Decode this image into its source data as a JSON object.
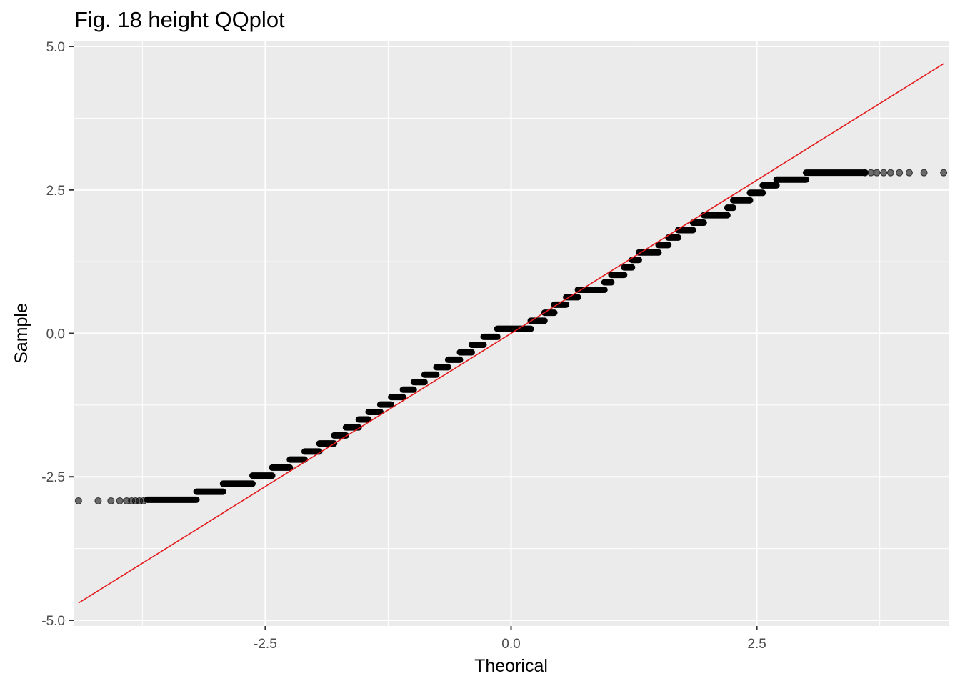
{
  "chart_data": {
    "type": "scatter",
    "title": "Fig. 18 height QQplot",
    "xlabel": "Theorical",
    "ylabel": "Sample",
    "xlim": [
      -4.45,
      4.45
    ],
    "ylim": [
      -5.1,
      5.1
    ],
    "x_ticks": [
      -2.5,
      0.0,
      2.5
    ],
    "x_tick_labels": [
      "-2.5",
      "0.0",
      "2.5"
    ],
    "y_ticks": [
      -5.0,
      -2.5,
      0.0,
      2.5,
      5.0
    ],
    "y_tick_labels": [
      "-5.0",
      "-2.5",
      "0.0",
      "2.5",
      "5.0"
    ],
    "grid": true,
    "background": "#ebebeb",
    "grid_color": "#ffffff",
    "point_color": "#000000",
    "line_color": "#e31a1c",
    "reference_line": {
      "x": [
        -4.4,
        4.4
      ],
      "y": [
        -4.7,
        4.7
      ]
    },
    "steps": [
      {
        "y": -2.9,
        "x0": -3.7,
        "x1": -3.2
      },
      {
        "y": -2.76,
        "x0": -3.2,
        "x1": -2.93
      },
      {
        "y": -2.62,
        "x0": -2.93,
        "x1": -2.63
      },
      {
        "y": -2.48,
        "x0": -2.63,
        "x1": -2.43
      },
      {
        "y": -2.34,
        "x0": -2.43,
        "x1": -2.25
      },
      {
        "y": -2.2,
        "x0": -2.25,
        "x1": -2.1
      },
      {
        "y": -2.06,
        "x0": -2.1,
        "x1": -1.95
      },
      {
        "y": -1.92,
        "x0": -1.95,
        "x1": -1.8
      },
      {
        "y": -1.78,
        "x0": -1.8,
        "x1": -1.68
      },
      {
        "y": -1.64,
        "x0": -1.68,
        "x1": -1.55
      },
      {
        "y": -1.5,
        "x0": -1.55,
        "x1": -1.45
      },
      {
        "y": -1.37,
        "x0": -1.45,
        "x1": -1.33
      },
      {
        "y": -1.24,
        "x0": -1.33,
        "x1": -1.22
      },
      {
        "y": -1.11,
        "x0": -1.22,
        "x1": -1.1
      },
      {
        "y": -0.98,
        "x0": -1.1,
        "x1": -0.99
      },
      {
        "y": -0.85,
        "x0": -0.99,
        "x1": -0.88
      },
      {
        "y": -0.72,
        "x0": -0.88,
        "x1": -0.76
      },
      {
        "y": -0.59,
        "x0": -0.76,
        "x1": -0.64
      },
      {
        "y": -0.46,
        "x0": -0.64,
        "x1": -0.52
      },
      {
        "y": -0.33,
        "x0": -0.52,
        "x1": -0.4
      },
      {
        "y": -0.2,
        "x0": -0.4,
        "x1": -0.28
      },
      {
        "y": -0.06,
        "x0": -0.28,
        "x1": -0.14
      },
      {
        "y": 0.08,
        "x0": -0.14,
        "x1": 0.2
      },
      {
        "y": 0.22,
        "x0": 0.2,
        "x1": 0.34
      },
      {
        "y": 0.36,
        "x0": 0.34,
        "x1": 0.44
      },
      {
        "y": 0.5,
        "x0": 0.44,
        "x1": 0.56
      },
      {
        "y": 0.63,
        "x0": 0.56,
        "x1": 0.68
      },
      {
        "y": 0.76,
        "x0": 0.68,
        "x1": 0.95
      },
      {
        "y": 0.89,
        "x0": 0.95,
        "x1": 1.02
      },
      {
        "y": 1.02,
        "x0": 1.02,
        "x1": 1.15
      },
      {
        "y": 1.15,
        "x0": 1.15,
        "x1": 1.23
      },
      {
        "y": 1.28,
        "x0": 1.23,
        "x1": 1.3
      },
      {
        "y": 1.41,
        "x0": 1.3,
        "x1": 1.5
      },
      {
        "y": 1.54,
        "x0": 1.5,
        "x1": 1.6
      },
      {
        "y": 1.67,
        "x0": 1.6,
        "x1": 1.7
      },
      {
        "y": 1.8,
        "x0": 1.7,
        "x1": 1.85
      },
      {
        "y": 1.93,
        "x0": 1.85,
        "x1": 1.96
      },
      {
        "y": 2.06,
        "x0": 1.96,
        "x1": 2.2
      },
      {
        "y": 2.19,
        "x0": 2.2,
        "x1": 2.26
      },
      {
        "y": 2.32,
        "x0": 2.26,
        "x1": 2.43
      },
      {
        "y": 2.45,
        "x0": 2.43,
        "x1": 2.56
      },
      {
        "y": 2.58,
        "x0": 2.56,
        "x1": 2.7
      },
      {
        "y": 2.68,
        "x0": 2.7,
        "x1": 3.0
      },
      {
        "y": 2.8,
        "x0": 3.0,
        "x1": 3.6
      }
    ],
    "tail_points": [
      {
        "x": -4.4,
        "y": -2.92
      },
      {
        "x": -4.2,
        "y": -2.92
      },
      {
        "x": -4.07,
        "y": -2.92
      },
      {
        "x": -3.98,
        "y": -2.92
      },
      {
        "x": -3.91,
        "y": -2.92
      },
      {
        "x": -3.86,
        "y": -2.92
      },
      {
        "x": -3.82,
        "y": -2.92
      },
      {
        "x": -3.78,
        "y": -2.92
      },
      {
        "x": -3.74,
        "y": -2.92
      },
      {
        "x": 3.6,
        "y": 2.8
      },
      {
        "x": 3.66,
        "y": 2.8
      },
      {
        "x": 3.72,
        "y": 2.8
      },
      {
        "x": 3.79,
        "y": 2.8
      },
      {
        "x": 3.86,
        "y": 2.8
      },
      {
        "x": 3.95,
        "y": 2.8
      },
      {
        "x": 4.05,
        "y": 2.8
      },
      {
        "x": 4.2,
        "y": 2.8
      },
      {
        "x": 4.4,
        "y": 2.8
      }
    ]
  }
}
